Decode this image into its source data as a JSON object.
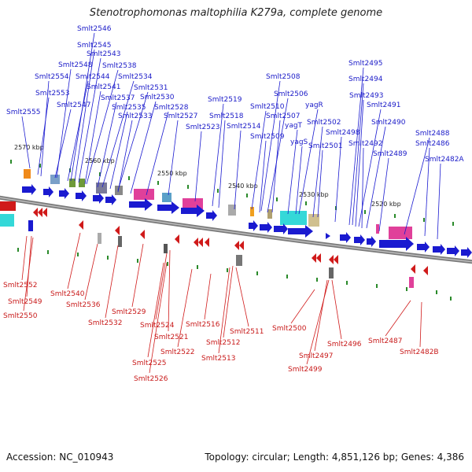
{
  "header": {
    "title": "Stenotrophomonas maltophilia K279a, complete genome"
  },
  "footer": {
    "accession": "Accession: NC_010943",
    "topology": "Topology: circular; Length: 4,851,126 bp; Genes: 4,386"
  },
  "scale": {
    "ticks": [
      "2570 kbp",
      "2560 kbp",
      "2550 kbp",
      "2540 kbp",
      "2530 kbp",
      "2520 kbp"
    ]
  },
  "genes": {
    "forward": [
      "Smlt2546",
      "Smlt2545",
      "Smlt2543",
      "Smlt2548",
      "Smlt2538",
      "Smlt2554",
      "Smlt2544",
      "Smlt2534",
      "Smlt2541",
      "Smlt2553",
      "Smlt2531",
      "Smlt2537",
      "Smlt2530",
      "Smlt2547",
      "Smlt2535",
      "Smlt2528",
      "Smlt2555",
      "Smlt2533",
      "Smlt2527",
      "Smlt2523",
      "Smlt2519",
      "Smlt2518",
      "Smlt2514",
      "Smlt2510",
      "Smlt2508",
      "Smlt2506",
      "Smlt2507",
      "Smlt2509",
      "yagR",
      "yagT",
      "yagS",
      "Smlt2502",
      "Smlt2501",
      "Smlt2498",
      "Smlt2495",
      "Smlt2494",
      "Smlt2493",
      "Smlt2491",
      "Smlt2490",
      "Smlt2492",
      "Smlt2489",
      "Smlt2488",
      "Smlt2486",
      "Smlt2482A"
    ],
    "reverse": [
      "Smlt2552",
      "Smlt2549",
      "Smlt2550",
      "Smlt2540",
      "Smlt2536",
      "Smlt2532",
      "Smlt2529",
      "Smlt2524",
      "Smlt2521",
      "Smlt2522",
      "Smlt2525",
      "Smlt2526",
      "Smlt2516",
      "Smlt2512",
      "Smlt2513",
      "Smlt2511",
      "Smlt2500",
      "Smlt2497",
      "Smlt2499",
      "Smlt2496",
      "Smlt2487",
      "Smlt2482B"
    ]
  },
  "colors": {
    "forward": "#1a1ad0",
    "reverse": "#d01a1a",
    "backbone": "#888888",
    "tick": "#2a8a2a"
  }
}
